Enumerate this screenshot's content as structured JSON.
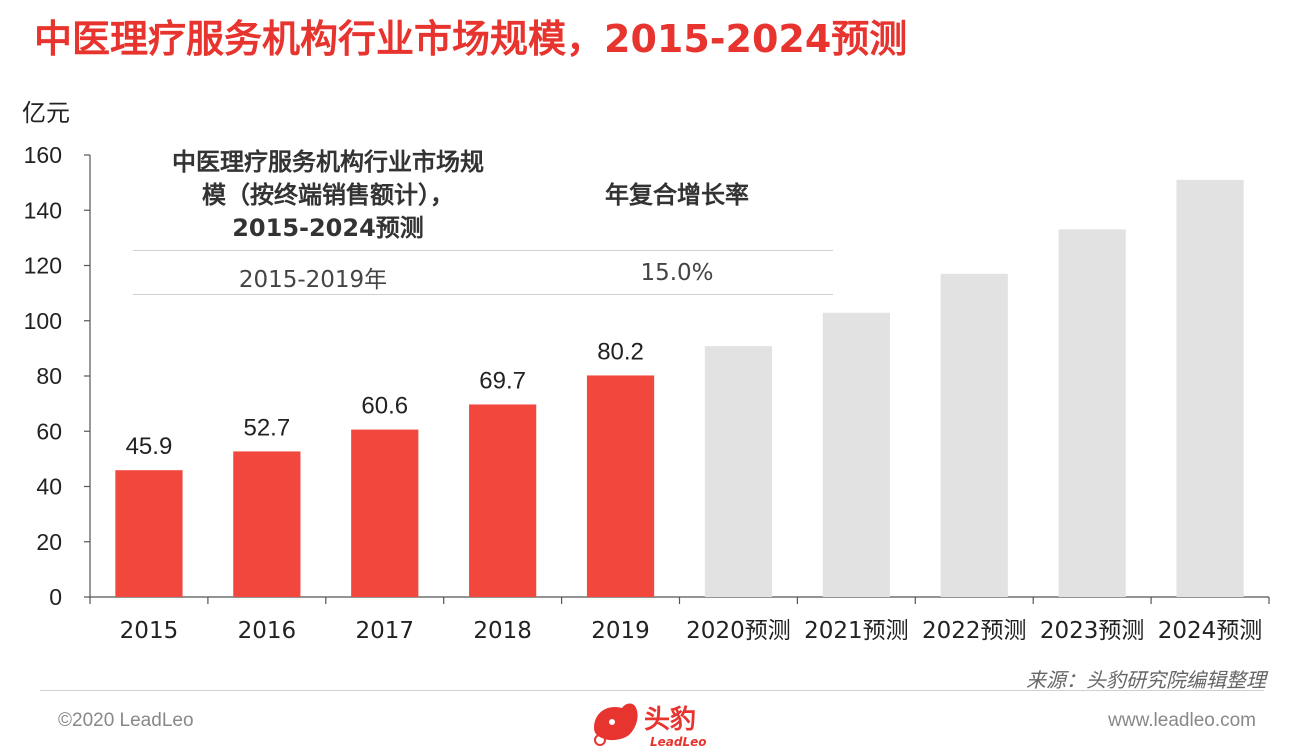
{
  "title": "中医理疗服务机构行业市场规模，2015-2024预测",
  "unit_label": "亿元",
  "info_table": {
    "col1_header": "中医理疗服务机构行业市场规模（按终端销售额计），2015-2024预测",
    "col1_header_lines": [
      "中医理疗服务机构行业市场规",
      "模（按终端销售额计），",
      "2015-2024预测"
    ],
    "col2_header": "年复合增长率",
    "rows": [
      {
        "period": "2015-2019年",
        "cagr": "15.0%"
      }
    ]
  },
  "chart_data": {
    "type": "bar",
    "categories": [
      "2015",
      "2016",
      "2017",
      "2018",
      "2019",
      "2020预测",
      "2021预测",
      "2022预测",
      "2023预测",
      "2024预测"
    ],
    "values": [
      45.9,
      52.7,
      60.6,
      69.7,
      80.2,
      90.8,
      102.9,
      117.0,
      133.1,
      151.0
    ],
    "data_labels": [
      "45.9",
      "52.7",
      "60.6",
      "69.7",
      "80.2",
      "",
      "",
      "",
      "",
      ""
    ],
    "ylabel": "亿元",
    "ylim": [
      0,
      160
    ],
    "yticks": [
      0,
      20,
      40,
      60,
      80,
      100,
      120,
      140,
      160
    ],
    "grid": false,
    "colors": {
      "actual": "#f2473d",
      "forecast": "#e2e2e2",
      "axis": "#555555"
    }
  },
  "source": "来源：头豹研究院编辑整理",
  "footer": {
    "copyright": "©2020 LeadLeo",
    "website": "www.leadleo.com",
    "logo_text": "头豹",
    "logo_subtext": "LeadLeo"
  }
}
